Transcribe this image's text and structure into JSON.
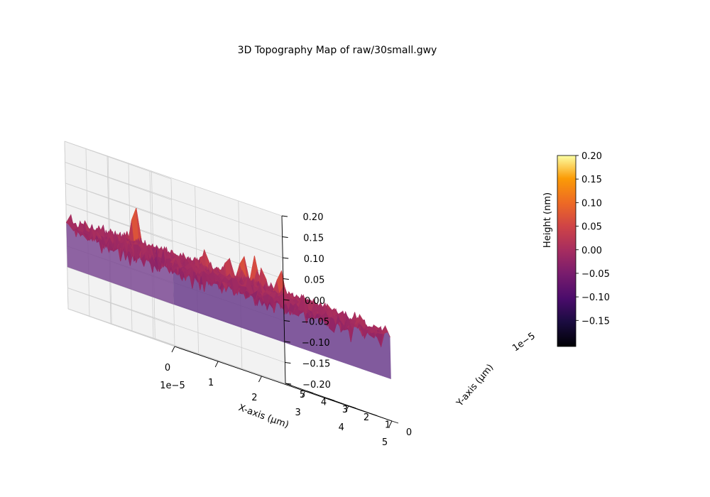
{
  "chart_data": {
    "type": "surface",
    "title": "3D Topography Map of raw/30small.gwy",
    "xlabel": "X-axis (µm)",
    "ylabel": "Y-axis (µm)",
    "zlabel": "Height (nm)",
    "x_offset_label": "1e−5",
    "y_offset_label": "1e−5",
    "x_ticks": [
      "0",
      "1",
      "2",
      "3",
      "4",
      "5"
    ],
    "y_ticks": [
      "0",
      "1",
      "2",
      "3",
      "4",
      "5"
    ],
    "z_ticks": [
      "−0.20",
      "−0.15",
      "−0.10",
      "−0.05",
      "0.00",
      "0.05",
      "0.10",
      "0.15",
      "0.20"
    ],
    "xlim": [
      0,
      5
    ],
    "ylim": [
      0,
      5
    ],
    "zlim": [
      -0.2,
      0.2
    ],
    "colormap": "inferno",
    "colorbar": {
      "range": [
        -0.2,
        0.2
      ],
      "ticks": [
        "0.20",
        "0.15",
        "0.10",
        "0.05",
        "0.00",
        "−0.05",
        "−0.10",
        "−0.15"
      ]
    },
    "grid": true
  }
}
